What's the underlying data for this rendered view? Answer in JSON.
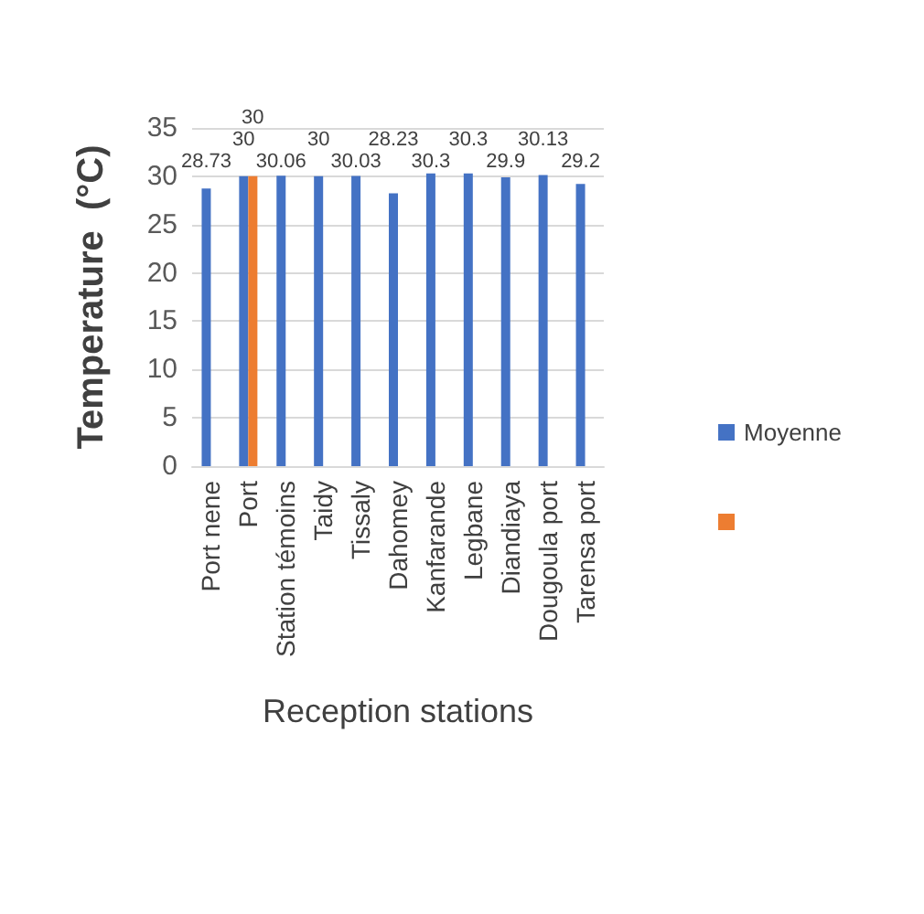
{
  "chart_data": {
    "type": "bar",
    "xlabel": "Reception stations",
    "ylabel": "Temperature  (°C)",
    "categories": [
      "Port nene",
      "Port",
      "Station témoins",
      "Taidy",
      "Tissaly",
      "Dahomey",
      "Kanfarande",
      "Legbane",
      "Diandiaya",
      "Dougoula port",
      "Tarensa port"
    ],
    "series": [
      {
        "name": "Moyenne",
        "color": "#4472c4",
        "values": [
          28.73,
          30,
          30.06,
          30,
          30.03,
          28.23,
          30.3,
          30.3,
          29.9,
          30.13,
          29.2
        ]
      },
      {
        "color": "#ed7d31",
        "values": [
          null,
          30,
          null,
          null,
          null,
          null,
          null,
          null,
          null,
          null,
          null
        ]
      }
    ],
    "ylim": [
      0,
      35
    ],
    "yticks": [
      0,
      5,
      10,
      15,
      20,
      25,
      30,
      35
    ],
    "grid": "y",
    "legend": "right",
    "data_labels": true
  }
}
